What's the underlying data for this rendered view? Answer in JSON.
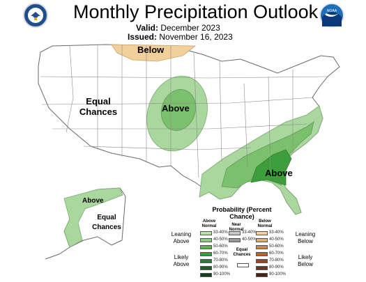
{
  "header": {
    "title": "Monthly Precipitation Outlook",
    "valid_label": "Valid:",
    "valid_value": "December 2023",
    "issued_label": "Issued:",
    "issued_value": "November 16, 2023"
  },
  "logos": {
    "left": "Department of Commerce seal",
    "right_text": "NOAA"
  },
  "map": {
    "labels": {
      "below_north": "Below",
      "equal_west": "Equal Chances",
      "above_plains": "Above",
      "above_southeast": "Above",
      "above_alaska": "Above",
      "equal_alaska": "Equal Chances"
    },
    "colors": {
      "above_33_40": "#a9d79e",
      "above_40_50": "#7bc06d",
      "above_50_60": "#3e9e3c",
      "below_33_40": "#f2d09b",
      "land": "#ffffff",
      "border": "#888888",
      "water": "#ffffff"
    }
  },
  "legend": {
    "title": "Probability (Percent Chance)",
    "col_above": "Above Normal",
    "col_near": "Near Normal",
    "col_below": "Below Normal",
    "leaning_above": "Leaning Above",
    "likely_above": "Likely Above",
    "leaning_below": "Leaning Below",
    "likely_below": "Likely Below",
    "equal_chances": "Equal Chances",
    "rows": [
      "33-40%",
      "40-50%",
      "50-60%",
      "60-70%",
      "70-80%",
      "80-90%",
      "90-100%"
    ],
    "near_rows": [
      "33-40%",
      "40-50%"
    ],
    "above_colors": [
      "#b9e0ad",
      "#8fcb7f",
      "#5cb44e",
      "#3d9a3d",
      "#2e7a36",
      "#1f5c2c",
      "#12401d"
    ],
    "near_colors": [
      "#c8c8c8",
      "#999999"
    ],
    "below_colors": [
      "#f2d09b",
      "#deb06d",
      "#c9884a",
      "#ad6634",
      "#8f4b27",
      "#6e3320",
      "#4b2116"
    ]
  }
}
